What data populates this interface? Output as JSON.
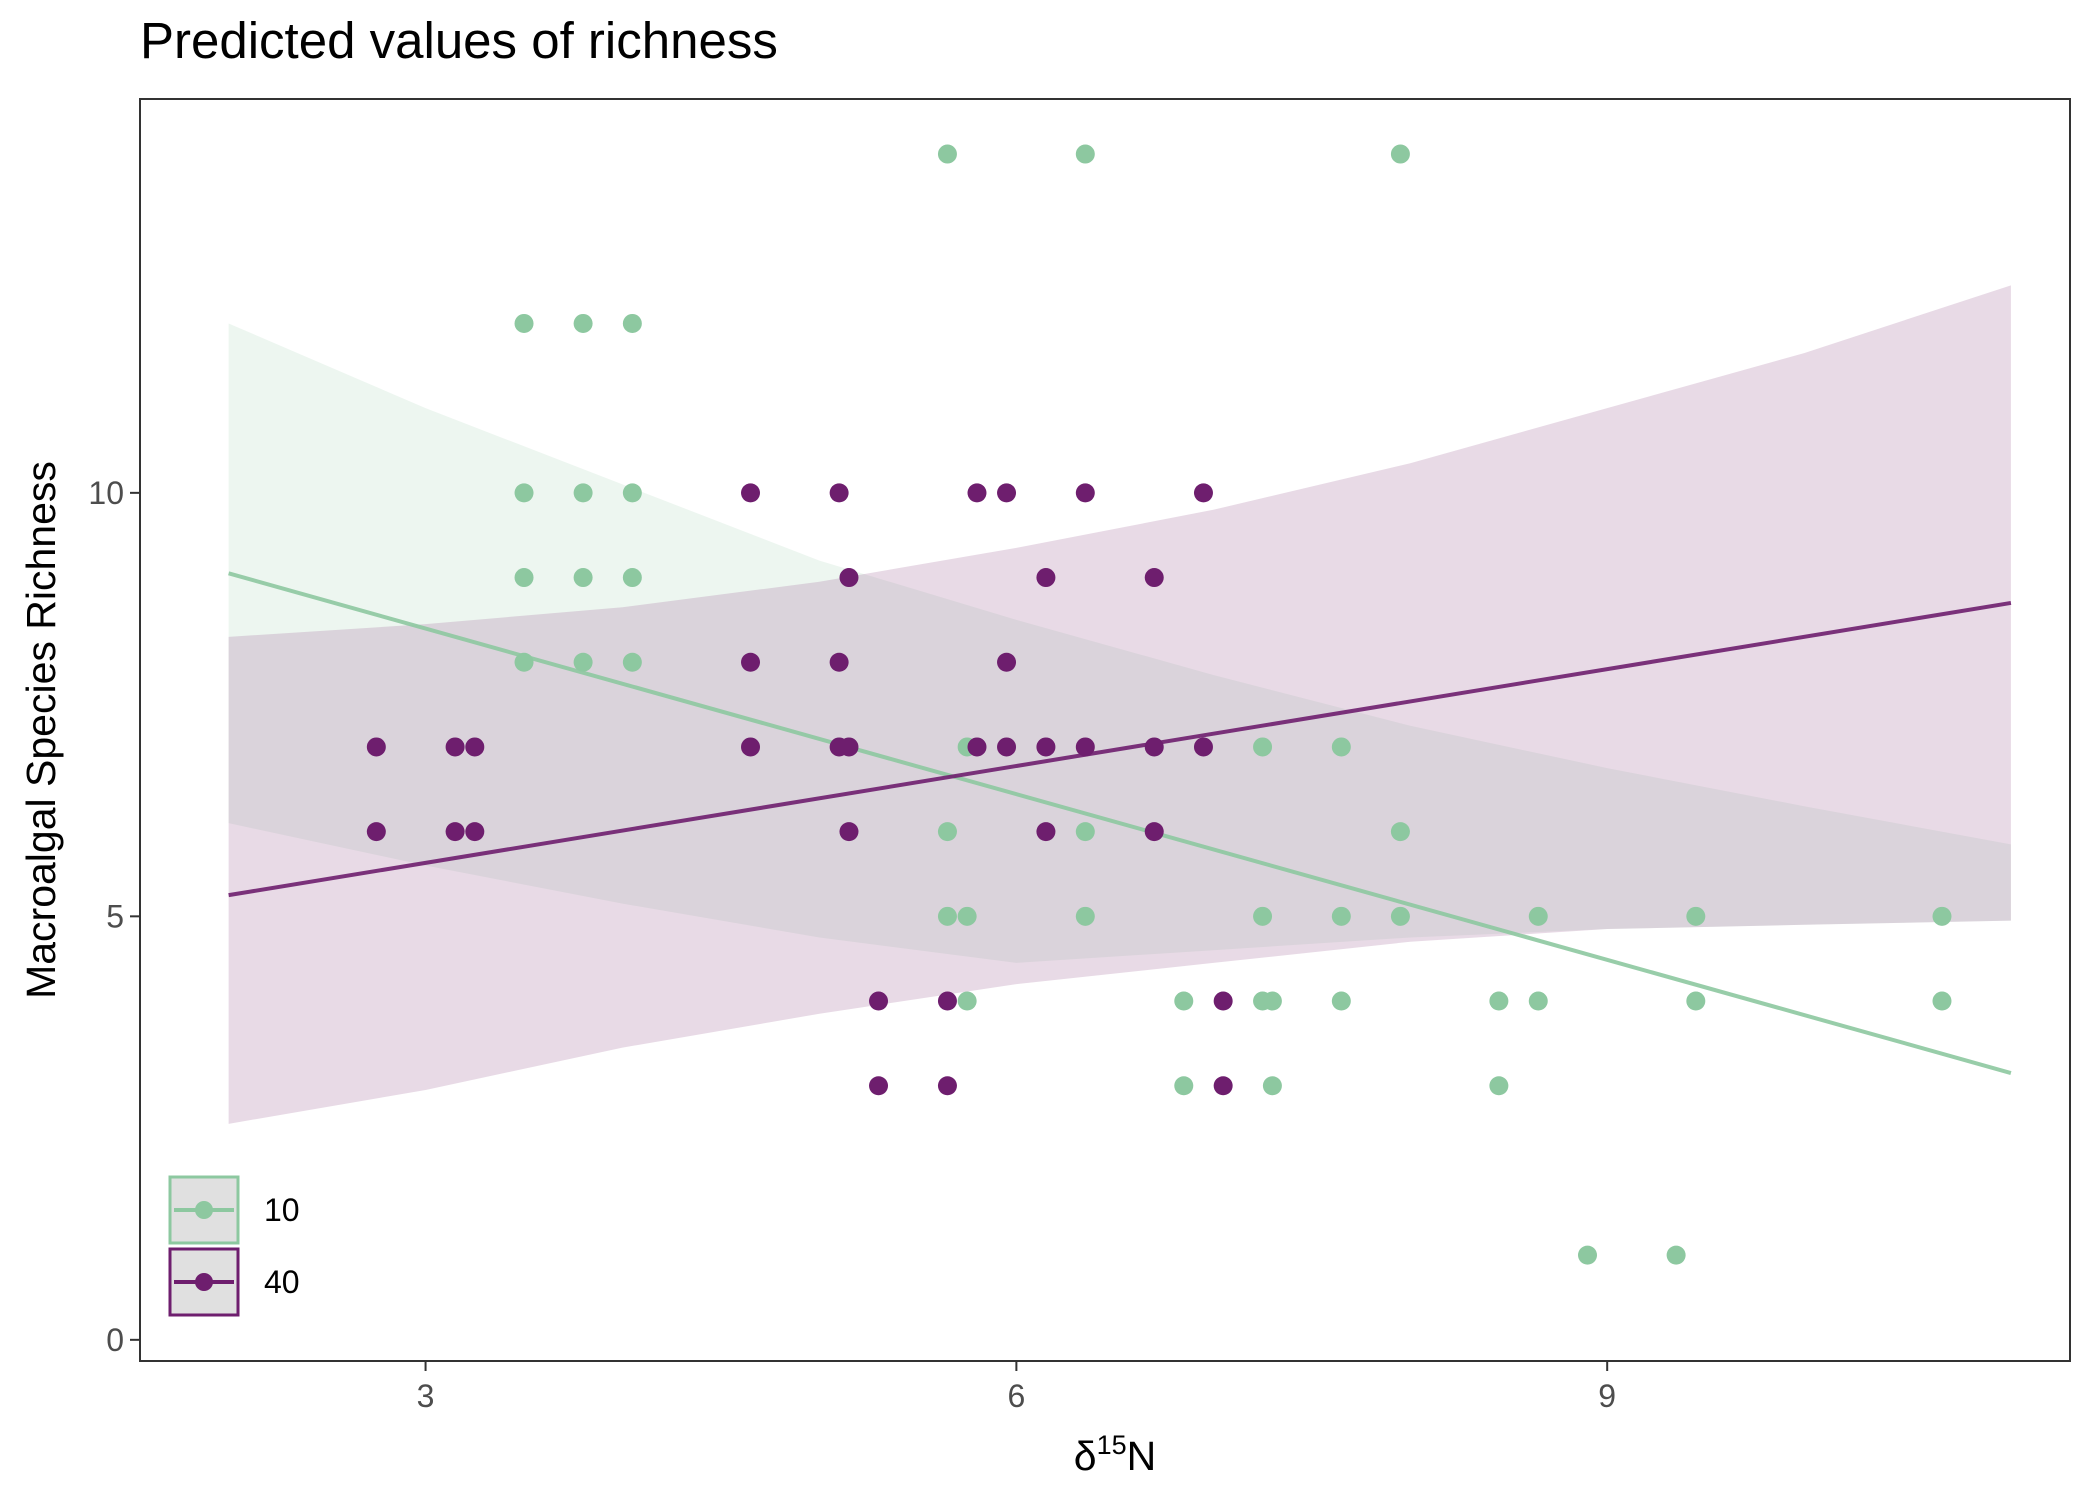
{
  "chart_data": {
    "type": "scatter",
    "title": "Predicted values of richness",
    "xlabel": {
      "base": "δ",
      "superscript": "15",
      "suffix": "N"
    },
    "ylabel": "Macroalgal Species Richness",
    "xlim": [
      1.55,
      11.35
    ],
    "ylim": [
      -0.25,
      14.65
    ],
    "x_ticks": [
      3,
      6,
      9
    ],
    "x_tick_labels": [
      "3",
      "6",
      "9"
    ],
    "y_ticks": [
      0,
      5,
      10
    ],
    "y_tick_labels": [
      "0",
      "5",
      "10"
    ],
    "grid": false,
    "legend_position": "bottom-left",
    "series": [
      {
        "name": "10",
        "color": "#8dc8a0",
        "band_color": "#8dc8a0",
        "fit_x": [
          2.0,
          11.05
        ],
        "fit_y": [
          9.05,
          3.15
        ],
        "ci_x": [
          2.0,
          3.0,
          4.0,
          5.0,
          6.0,
          7.0,
          8.0,
          9.0,
          10.0,
          11.05
        ],
        "ci_lower": [
          6.1,
          5.6,
          5.15,
          4.75,
          4.45,
          4.6,
          4.75,
          4.85,
          4.9,
          4.95
        ],
        "ci_upper": [
          12.0,
          11.0,
          10.1,
          9.2,
          8.5,
          7.85,
          7.25,
          6.75,
          6.3,
          5.85
        ],
        "points": [
          [
            3.5,
            12
          ],
          [
            3.8,
            12
          ],
          [
            4.05,
            12
          ],
          [
            3.5,
            10
          ],
          [
            3.8,
            10
          ],
          [
            4.05,
            10
          ],
          [
            3.5,
            9
          ],
          [
            3.8,
            9
          ],
          [
            4.05,
            9
          ],
          [
            3.5,
            8
          ],
          [
            3.8,
            8
          ],
          [
            4.05,
            8
          ],
          [
            5.65,
            14
          ],
          [
            6.35,
            14
          ],
          [
            7.95,
            14
          ],
          [
            5.75,
            7
          ],
          [
            7.25,
            7
          ],
          [
            7.65,
            7
          ],
          [
            5.65,
            6
          ],
          [
            6.35,
            6
          ],
          [
            7.95,
            6
          ],
          [
            5.65,
            5
          ],
          [
            5.75,
            5
          ],
          [
            6.35,
            5
          ],
          [
            7.25,
            5
          ],
          [
            7.65,
            5
          ],
          [
            7.95,
            5
          ],
          [
            8.65,
            5
          ],
          [
            9.45,
            5
          ],
          [
            10.7,
            5
          ],
          [
            5.75,
            4
          ],
          [
            6.85,
            4
          ],
          [
            7.25,
            4
          ],
          [
            7.3,
            4
          ],
          [
            7.65,
            4
          ],
          [
            8.45,
            4
          ],
          [
            8.65,
            4
          ],
          [
            9.45,
            4
          ],
          [
            10.7,
            4
          ],
          [
            6.85,
            3
          ],
          [
            7.3,
            3
          ],
          [
            8.45,
            3
          ],
          [
            8.9,
            1
          ],
          [
            9.35,
            1
          ]
        ]
      },
      {
        "name": "40",
        "color": "#6e1e6e",
        "band_color": "#a56b9b",
        "fit_x": [
          2.0,
          11.05
        ],
        "fit_y": [
          5.25,
          8.7
        ],
        "ci_x": [
          2.0,
          3.0,
          4.0,
          5.0,
          6.0,
          7.0,
          8.0,
          9.0,
          10.0,
          11.05
        ],
        "ci_lower": [
          2.55,
          2.95,
          3.45,
          3.85,
          4.2,
          4.45,
          4.7,
          4.85,
          4.9,
          4.95
        ],
        "ci_upper": [
          8.3,
          8.45,
          8.65,
          8.95,
          9.35,
          9.8,
          10.35,
          11.0,
          11.65,
          12.45
        ],
        "points": [
          [
            2.75,
            7
          ],
          [
            3.15,
            7
          ],
          [
            3.25,
            7
          ],
          [
            2.75,
            6
          ],
          [
            3.15,
            6
          ],
          [
            3.25,
            6
          ],
          [
            4.65,
            10
          ],
          [
            5.1,
            10
          ],
          [
            5.8,
            10
          ],
          [
            5.95,
            10
          ],
          [
            6.35,
            10
          ],
          [
            6.95,
            10
          ],
          [
            5.15,
            9
          ],
          [
            6.15,
            9
          ],
          [
            6.7,
            9
          ],
          [
            4.65,
            8
          ],
          [
            5.1,
            8
          ],
          [
            5.95,
            8
          ],
          [
            4.65,
            7
          ],
          [
            5.1,
            7
          ],
          [
            5.15,
            7
          ],
          [
            5.8,
            7
          ],
          [
            5.95,
            7
          ],
          [
            6.15,
            7
          ],
          [
            6.35,
            7
          ],
          [
            6.7,
            7
          ],
          [
            6.95,
            7
          ],
          [
            5.15,
            6
          ],
          [
            6.15,
            6
          ],
          [
            6.7,
            6
          ],
          [
            5.3,
            4
          ],
          [
            5.65,
            4
          ],
          [
            7.05,
            4
          ],
          [
            5.3,
            3
          ],
          [
            5.65,
            3
          ],
          [
            7.05,
            3
          ]
        ]
      }
    ]
  }
}
